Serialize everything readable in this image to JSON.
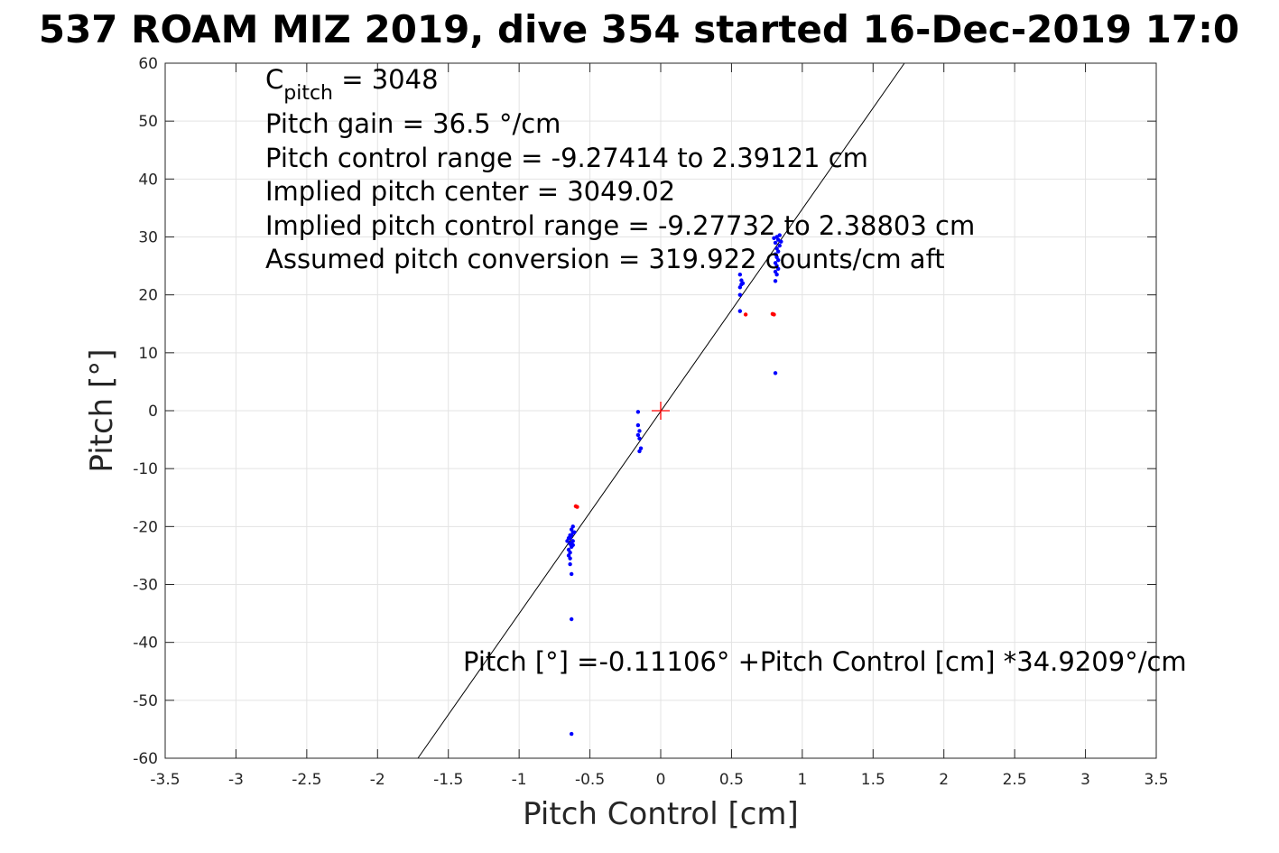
{
  "chart_data": {
    "type": "scatter",
    "title": "537 ROAM MIZ 2019, dive 354 started 16-Dec-2019 17:0",
    "xlabel": "Pitch Control [cm]",
    "ylabel": "Pitch [°]",
    "xlim": [
      -3.5,
      3.5
    ],
    "ylim": [
      -60,
      60
    ],
    "xticks": [
      -3.5,
      -3,
      -2.5,
      -2,
      -1.5,
      -1,
      -0.5,
      0,
      0.5,
      1,
      1.5,
      2,
      2.5,
      3,
      3.5
    ],
    "yticks": [
      -60,
      -50,
      -40,
      -30,
      -20,
      -10,
      0,
      10,
      20,
      30,
      40,
      50,
      60
    ],
    "xtick_labels": [
      "-3.5",
      "-3",
      "-2.5",
      "-2",
      "-1.5",
      "-1",
      "-0.5",
      "0",
      "0.5",
      "1",
      "1.5",
      "2",
      "2.5",
      "3",
      "3.5"
    ],
    "ytick_labels": [
      "-60",
      "-50",
      "-40",
      "-30",
      "-20",
      "-10",
      "0",
      "10",
      "20",
      "30",
      "40",
      "50",
      "60"
    ],
    "grid": true,
    "colors": {
      "good_points": "#0000ff",
      "rejected_points": "#ff0000",
      "fit_line": "#000000",
      "center_marker": "#ff0000",
      "grid": "#e3e3e3"
    },
    "fit_line": {
      "intercept": -0.11106,
      "slope": 34.9209
    },
    "center_marker": {
      "x": 0,
      "y": 0
    },
    "annotations": {
      "c_pitch_main": "C",
      "c_pitch_sub": "pitch",
      "c_pitch_value": " = 3048",
      "pitch_gain": "Pitch gain = 36.5 °/cm",
      "control_range": "Pitch control range = -9.27414 to 2.39121 cm",
      "implied_center": "Implied pitch center = 3049.02",
      "implied_range": "Implied pitch control range = -9.27732 to 2.38803 cm",
      "conversion": "Assumed pitch conversion = 319.922 counts/cm aft",
      "fit_equation": "Pitch [°] =-0.11106° +Pitch Control [cm] *34.9209°/cm"
    },
    "series": [
      {
        "color": "#0000ff",
        "points": [
          [
            -0.63,
            -20.5
          ],
          [
            -0.62,
            -21.0
          ],
          [
            -0.63,
            -21.5
          ],
          [
            -0.64,
            -22.0
          ],
          [
            -0.62,
            -22.5
          ],
          [
            -0.65,
            -22.0
          ],
          [
            -0.66,
            -22.5
          ],
          [
            -0.64,
            -23.0
          ],
          [
            -0.63,
            -23.5
          ],
          [
            -0.65,
            -24.0
          ],
          [
            -0.64,
            -24.5
          ],
          [
            -0.65,
            -25.0
          ],
          [
            -0.64,
            -25.5
          ],
          [
            -0.62,
            -20.0
          ],
          [
            -0.61,
            -21.0
          ],
          [
            -0.64,
            -21.5
          ],
          [
            -0.63,
            -22.8
          ],
          [
            -0.62,
            -23.2
          ],
          [
            -0.64,
            -26.5
          ],
          [
            -0.63,
            -28.2
          ],
          [
            -0.63,
            -36.0
          ],
          [
            -0.63,
            -55.8
          ],
          [
            -0.16,
            -0.2
          ],
          [
            -0.16,
            -2.5
          ],
          [
            -0.15,
            -3.5
          ],
          [
            -0.16,
            -4.2
          ],
          [
            -0.15,
            -4.8
          ],
          [
            -0.14,
            -6.5
          ],
          [
            -0.15,
            -7.0
          ],
          [
            0.56,
            23.5
          ],
          [
            0.57,
            22.5
          ],
          [
            0.57,
            21.8
          ],
          [
            0.56,
            21.3
          ],
          [
            0.58,
            22.0
          ],
          [
            0.56,
            20.0
          ],
          [
            0.56,
            17.2
          ],
          [
            0.82,
            30.0
          ],
          [
            0.83,
            29.5
          ],
          [
            0.81,
            29.0
          ],
          [
            0.84,
            28.5
          ],
          [
            0.82,
            28.0
          ],
          [
            0.83,
            27.5
          ],
          [
            0.81,
            27.0
          ],
          [
            0.82,
            26.5
          ],
          [
            0.83,
            26.0
          ],
          [
            0.81,
            25.5
          ],
          [
            0.82,
            25.0
          ],
          [
            0.83,
            24.5
          ],
          [
            0.81,
            24.0
          ],
          [
            0.82,
            23.5
          ],
          [
            0.84,
            30.3
          ],
          [
            0.8,
            29.8
          ],
          [
            0.85,
            29.2
          ],
          [
            0.81,
            22.4
          ],
          [
            0.81,
            6.5
          ]
        ]
      },
      {
        "color": "#ff0000",
        "points": [
          [
            -0.59,
            -16.6
          ],
          [
            -0.6,
            -16.5
          ],
          [
            0.6,
            16.6
          ],
          [
            0.79,
            16.7
          ],
          [
            0.8,
            16.6
          ]
        ]
      }
    ]
  }
}
